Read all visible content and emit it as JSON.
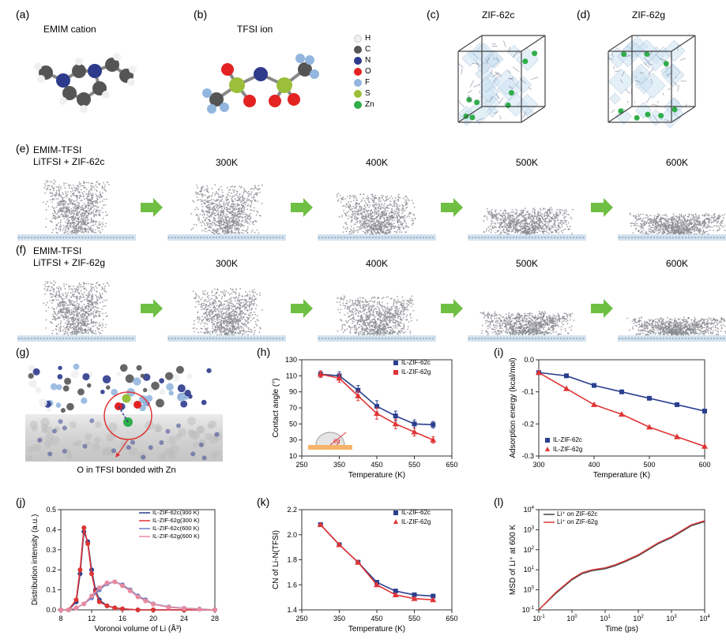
{
  "colors": {
    "H": "#f0f0f0",
    "C": "#555555",
    "N": "#2e3a8c",
    "O": "#e32222",
    "F": "#93b6de",
    "S": "#9bbf3a",
    "Zn": "#2fae4a",
    "arrow": "#6fbf44",
    "series_c": "#2a3f8f",
    "series_g": "#e03434",
    "substrate": "#f7b36a",
    "cube_edge": "#444444",
    "cube_fill": "#cfe4f3",
    "axis": "#333333",
    "grid": "#dddddd",
    "bg": "#ffffff"
  },
  "panels": {
    "a": {
      "label": "(a)",
      "title": "EMIM cation"
    },
    "b": {
      "label": "(b)",
      "title": "TFSI ion"
    },
    "c": {
      "label": "(c)",
      "title": "ZIF-62c"
    },
    "d": {
      "label": "(d)",
      "title": "ZIF-62g"
    },
    "e": {
      "label": "(e)",
      "row_label_top": "EMIM-TFSI",
      "row_label_bot": "LiTFSI",
      "row_label_suffix": " + ZIF-62c"
    },
    "f": {
      "label": "(f)",
      "row_label_top": "EMIM-TFSI",
      "row_label_bot": "LiTFSI",
      "row_label_suffix": " + ZIF-62g"
    },
    "g": {
      "label": "(g)",
      "caption": "O in TFSI bonded with Zn"
    },
    "h": {
      "label": "(h)"
    },
    "i": {
      "label": "(i)"
    },
    "j": {
      "label": "(j)"
    },
    "k": {
      "label": "(k)"
    },
    "l": {
      "label": "(l)"
    }
  },
  "atom_legend": [
    {
      "name": "H",
      "color": "#f0f0f0"
    },
    {
      "name": "C",
      "color": "#555555"
    },
    {
      "name": "N",
      "color": "#2e3a8c"
    },
    {
      "name": "O",
      "color": "#e32222"
    },
    {
      "name": "F",
      "color": "#93b6de"
    },
    {
      "name": "S",
      "color": "#9bbf3a"
    },
    {
      "name": "Zn",
      "color": "#2fae4a"
    }
  ],
  "temperatures": [
    null,
    "300K",
    "400K",
    "500K",
    "600K"
  ],
  "chart_h": {
    "xlabel": "Temperature (K)",
    "ylabel": "Contact angle (°)",
    "xlim": [
      250,
      650
    ],
    "xtick_step": 100,
    "ylim": [
      10,
      130
    ],
    "ytick_step": 20,
    "series": [
      {
        "name": "IL-ZIF-62c",
        "color": "#2a3f8f",
        "marker": "square",
        "x": [
          300,
          350,
          400,
          450,
          500,
          550,
          600
        ],
        "y": [
          112,
          110,
          92,
          72,
          60,
          50,
          49
        ],
        "err": [
          4,
          5,
          6,
          7,
          6,
          5,
          4
        ]
      },
      {
        "name": "IL-ZIF-62g",
        "color": "#e03434",
        "marker": "triangle",
        "x": [
          300,
          350,
          400,
          450,
          500,
          550,
          600
        ],
        "y": [
          112,
          107,
          85,
          63,
          50,
          40,
          30
        ],
        "err": [
          4,
          5,
          6,
          7,
          6,
          5,
          4
        ]
      }
    ],
    "legend_pos": "top-right",
    "inset_label": "θc"
  },
  "chart_i": {
    "xlabel": "Temperature (K)",
    "ylabel": "Adsorption energy (kcal/mol)",
    "xlim": [
      300,
      600
    ],
    "xtick_step": 100,
    "ylim": [
      -0.3,
      0.0
    ],
    "ytick_step": 0.1,
    "series": [
      {
        "name": "IL-ZIF-62c",
        "color": "#2a3f8f",
        "marker": "square",
        "x": [
          300,
          350,
          400,
          450,
          500,
          550,
          600
        ],
        "y": [
          -0.04,
          -0.05,
          -0.08,
          -0.1,
          -0.12,
          -0.14,
          -0.16
        ]
      },
      {
        "name": "IL-ZIF-62g",
        "color": "#e03434",
        "marker": "triangle",
        "x": [
          300,
          350,
          400,
          450,
          500,
          550,
          600
        ],
        "y": [
          -0.04,
          -0.09,
          -0.14,
          -0.17,
          -0.21,
          -0.24,
          -0.27
        ]
      }
    ],
    "legend_pos": "bottom-left"
  },
  "chart_j": {
    "xlabel": "Voronoi volume of Li (Å³)",
    "ylabel": "Distribution intensity (a.u.)",
    "xlim": [
      8,
      28
    ],
    "xtick_step": 4,
    "ylim": [
      0.0,
      0.5
    ],
    "ytick_step": 0.1,
    "series": [
      {
        "name": "IL-ZIF-62c(300 K)",
        "color": "#2a3f8f",
        "x": [
          8,
          9,
          10,
          10.5,
          11,
          11.5,
          12,
          12.5,
          13,
          14,
          15,
          16,
          18,
          20,
          24,
          28
        ],
        "y": [
          0,
          0,
          0.04,
          0.18,
          0.39,
          0.34,
          0.2,
          0.1,
          0.05,
          0.02,
          0.01,
          0.005,
          0,
          0,
          0,
          0
        ]
      },
      {
        "name": "IL-ZIF-62g(300 K)",
        "color": "#e03434",
        "x": [
          8,
          9,
          10,
          10.5,
          11,
          11.5,
          12,
          12.5,
          13,
          14,
          15,
          16,
          18,
          20,
          24,
          28
        ],
        "y": [
          0,
          0,
          0.05,
          0.2,
          0.41,
          0.33,
          0.18,
          0.09,
          0.04,
          0.02,
          0.01,
          0.005,
          0,
          0,
          0,
          0
        ]
      },
      {
        "name": "IL-ZIF-62c(600 K)",
        "color": "#6b7fc7",
        "x": [
          8,
          9,
          10,
          11,
          12,
          13,
          14,
          15,
          16,
          17,
          18,
          19,
          20,
          22,
          24,
          26,
          28
        ],
        "y": [
          0,
          0,
          0.01,
          0.03,
          0.06,
          0.1,
          0.13,
          0.14,
          0.125,
          0.1,
          0.07,
          0.05,
          0.03,
          0.015,
          0.008,
          0.004,
          0
        ]
      },
      {
        "name": "IL-ZIF-62g(600 K)",
        "color": "#e88aa0",
        "x": [
          8,
          9,
          10,
          11,
          12,
          13,
          14,
          15,
          16,
          17,
          18,
          19,
          20,
          22,
          24,
          26,
          28
        ],
        "y": [
          0,
          0,
          0.01,
          0.03,
          0.07,
          0.11,
          0.135,
          0.14,
          0.12,
          0.095,
          0.065,
          0.045,
          0.028,
          0.013,
          0.007,
          0.003,
          0
        ]
      }
    ],
    "legend_pos": "top-right"
  },
  "chart_k": {
    "xlabel": "Temperature (K)",
    "ylabel": "CN of Li-N(TFSI)",
    "xlim": [
      250,
      650
    ],
    "xtick_step": 100,
    "ylim": [
      1.4,
      2.2
    ],
    "ytick_step": 0.2,
    "series": [
      {
        "name": "IL-ZIF-62c",
        "color": "#2a3f8f",
        "marker": "square",
        "x": [
          300,
          350,
          400,
          450,
          500,
          550,
          600
        ],
        "y": [
          2.08,
          1.92,
          1.78,
          1.62,
          1.55,
          1.52,
          1.51
        ]
      },
      {
        "name": "IL-ZIF-62g",
        "color": "#e03434",
        "marker": "triangle",
        "x": [
          300,
          350,
          400,
          450,
          500,
          550,
          600
        ],
        "y": [
          2.08,
          1.92,
          1.78,
          1.6,
          1.52,
          1.49,
          1.48
        ]
      }
    ],
    "legend_pos": "top-right"
  },
  "chart_l": {
    "xlabel": "Time (ps)",
    "ylabel": "MSD of Li⁺ at 600 K",
    "xscale": "log",
    "yscale": "log",
    "xlim_exp": [
      -1,
      4
    ],
    "ylim_exp": [
      -1,
      4
    ],
    "series": [
      {
        "name": "Li⁺ on ZIF-62c",
        "color": "#444444",
        "x_exp": [
          -1,
          -0.5,
          0,
          0.3,
          0.6,
          0.8,
          1,
          1.3,
          1.6,
          2,
          2.3,
          2.6,
          3,
          3.3,
          3.6,
          4
        ],
        "y_exp": [
          -1,
          -0.2,
          0.5,
          0.8,
          0.95,
          1.0,
          1.05,
          1.2,
          1.4,
          1.7,
          2.0,
          2.3,
          2.6,
          2.9,
          3.2,
          3.4
        ]
      },
      {
        "name": "Li⁺ on ZIF-62g",
        "color": "#e03434",
        "x_exp": [
          -1,
          -0.5,
          0,
          0.3,
          0.6,
          0.8,
          1,
          1.3,
          1.6,
          2,
          2.3,
          2.6,
          3,
          3.3,
          3.6,
          4
        ],
        "y_exp": [
          -1,
          -0.15,
          0.55,
          0.85,
          1.0,
          1.05,
          1.1,
          1.25,
          1.45,
          1.75,
          2.05,
          2.35,
          2.65,
          2.95,
          3.25,
          3.45
        ]
      }
    ],
    "legend_pos": "top-left"
  },
  "droplets": {
    "e": {
      "heights": [
        0.95,
        0.85,
        0.7,
        0.45,
        0.35
      ],
      "spreads": [
        0.65,
        0.7,
        0.8,
        0.92,
        1.0
      ]
    },
    "f": {
      "heights": [
        0.95,
        0.82,
        0.68,
        0.4,
        0.3
      ],
      "spreads": [
        0.65,
        0.72,
        0.82,
        0.95,
        1.0
      ]
    }
  }
}
